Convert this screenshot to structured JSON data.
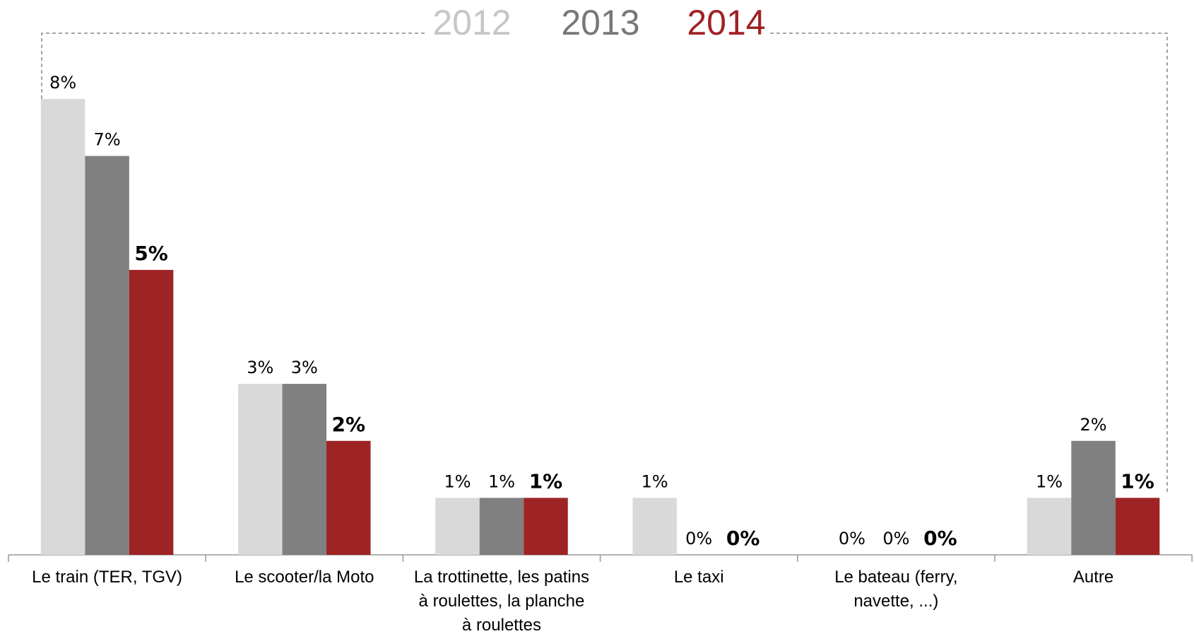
{
  "chart_data": {
    "type": "bar",
    "categories": [
      "Le train (TER, TGV)",
      "Le scooter/la Moto",
      "La trottinette, les patins à roulettes, la planche à roulettes",
      "Le taxi",
      "Le bateau (ferry, navette, ...)",
      "Autre"
    ],
    "series": [
      {
        "name": "2012",
        "color": "#d9d9d9",
        "legend_color": "#c6c6c6",
        "label_bold": false,
        "values": [
          8,
          3,
          1,
          1,
          0,
          1
        ],
        "value_labels": [
          "8%",
          "3%",
          "1%",
          "1%",
          "0%",
          "1%"
        ]
      },
      {
        "name": "2013",
        "color": "#808080",
        "legend_color": "#777777",
        "label_bold": false,
        "values": [
          7,
          3,
          1,
          0,
          0,
          2
        ],
        "value_labels": [
          "7%",
          "3%",
          "1%",
          "0%",
          "0%",
          "2%"
        ]
      },
      {
        "name": "2014",
        "color": "#9e2325",
        "legend_color": "#a02226",
        "label_bold": true,
        "values": [
          5,
          2,
          1,
          0,
          0,
          1
        ],
        "value_labels": [
          "5%",
          "2%",
          "1%",
          "0%",
          "0%",
          "1%"
        ]
      }
    ]
  }
}
